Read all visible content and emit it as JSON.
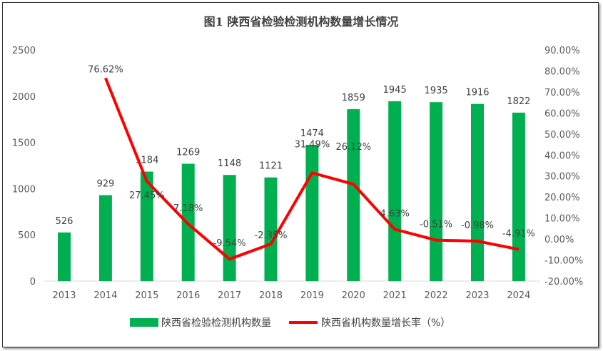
{
  "chart_data": {
    "type": "bar+line",
    "title": "图1 陕西省检验检测机构数量增长情况",
    "categories": [
      "2013",
      "2014",
      "2015",
      "2016",
      "2017",
      "2018",
      "2019",
      "2020",
      "2021",
      "2022",
      "2023",
      "2024"
    ],
    "series": [
      {
        "name": "陕西省检验检测机构数量",
        "type": "bar",
        "axis": "left",
        "color": "#00B050",
        "values": [
          526,
          929,
          1184,
          1269,
          1148,
          1121,
          1474,
          1859,
          1945,
          1935,
          1916,
          1822
        ],
        "labels": [
          "526",
          "929",
          "1184",
          "1269",
          "1148",
          "1121",
          "1474",
          "1859",
          "1945",
          "1935",
          "1916",
          "1822"
        ]
      },
      {
        "name": "陕西省机构数量增长率（%）",
        "type": "line",
        "axis": "right",
        "color": "#FF0000",
        "values": [
          null,
          76.62,
          27.45,
          7.18,
          -9.54,
          -2.35,
          31.49,
          26.12,
          4.63,
          -0.51,
          -0.98,
          -4.91
        ],
        "labels": [
          "",
          "76.62%",
          "27.45%",
          "7.18%",
          "-9.54%",
          "-2.35%",
          "31.49%",
          "26.12%",
          "4.63%",
          "-0.51%",
          "-0.98%",
          "-4.91%"
        ]
      }
    ],
    "y_left": {
      "range": [
        0,
        2500
      ],
      "ticks": [
        "0",
        "500",
        "1000",
        "1500",
        "2000",
        "2500"
      ]
    },
    "y_right": {
      "range": [
        -20,
        90
      ],
      "ticks": [
        "-20.00%",
        "-10.00%",
        "0.00%",
        "10.00%",
        "20.00%",
        "30.00%",
        "40.00%",
        "50.00%",
        "60.00%",
        "70.00%",
        "80.00%",
        "90.00%"
      ]
    },
    "grid": false,
    "legend": "bottom"
  }
}
